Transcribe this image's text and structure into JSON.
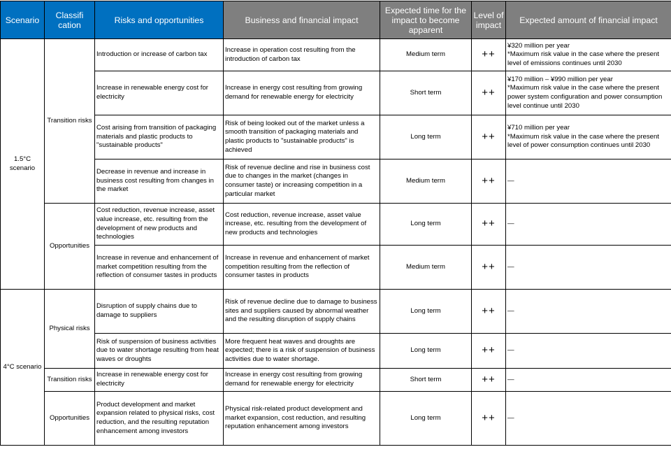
{
  "header": {
    "scenario": "Scenario",
    "classification": "Classifi cation",
    "risks": "Risks and opportunities",
    "business": "Business and financial impact",
    "time": "Expected time for the impact to become apparent",
    "level": "Level of impact",
    "amount": "Expected amount of financial impact"
  },
  "colors": {
    "header_blue": "#0070c0",
    "header_gray": "#7f7f7f"
  },
  "scenarios": [
    "1.5°C scenario",
    "4°C scenario"
  ],
  "classifications": [
    "Transition risks",
    "Opportunities",
    "Physical risks",
    "Transition risks",
    "Opportunities"
  ],
  "rows": [
    {
      "risk": "Introduction or increase of carbon tax",
      "impact": "Increase in operation cost resulting from the introduction of carbon tax",
      "time": "Medium term",
      "level": "++",
      "amount": "¥320 million per year",
      "note": "*Maximum risk value in the case where the present level of emissions continues until 2030"
    },
    {
      "risk": "Increase in renewable energy cost for electricity",
      "impact": "Increase in energy cost resulting from growing demand for renewable energy for electricity",
      "time": "Short term",
      "level": "++",
      "amount": "¥170 million – ¥990 million per year",
      "note": "*Maximum risk value in the case where the present power system configuration and power consumption level continue until 2030"
    },
    {
      "risk": "Cost arising from transition of packaging materials and plastic products to \"sustainable products\"",
      "impact": "Risk of being looked out of the market unless a smooth transition of packaging materials and plastic products to \"sustainable products\" is achieved",
      "time": "Long term",
      "level": "++",
      "amount": "¥710 million per year",
      "note": "*Maximum risk value in the case where the present level of power consumption continues until 2030"
    },
    {
      "risk": "Decrease in revenue and increase in business cost resulting from changes in the market",
      "impact": "Risk of revenue decline and rise in business cost due to changes in the market (changes in consumer taste) or increasing competition in a particular market",
      "time": "Medium term",
      "level": "++",
      "amount": "—",
      "note": ""
    },
    {
      "risk": "Cost reduction, revenue increase, asset value increase, etc. resulting from the development of new products and technologies",
      "impact": "Cost reduction, revenue increase, asset value increase, etc. resulting from the development of new products and technologies",
      "time": "Long term",
      "level": "++",
      "amount": "—",
      "note": ""
    },
    {
      "risk": "Increase in revenue and enhancement of market competition resulting from the reflection of consumer tastes in products",
      "impact": "Increase in revenue and enhancement of market competition resulting from the reflection of consumer tastes in products",
      "time": "Medium term",
      "level": "++",
      "amount": "—",
      "note": ""
    },
    {
      "risk": "Disruption of supply chains due to damage to suppliers",
      "impact": "Risk of revenue decline due to damage to business sites and suppliers caused by abnormal weather and the resulting disruption of supply chains",
      "time": "Long term",
      "level": "++",
      "amount": "—",
      "note": ""
    },
    {
      "risk": "Risk of suspension of business activities due to water shortage resulting from heat waves or droughts",
      "impact": "More frequent heat waves and droughts are expected; there is a risk of suspension of business activities due to water shortage.",
      "time": "Long term",
      "level": "++",
      "amount": "—",
      "note": ""
    },
    {
      "risk": "Increase in renewable energy cost for electricity",
      "impact": "Increase in energy cost resulting from growing demand for renewable energy for electricity",
      "time": "Short term",
      "level": "++",
      "amount": "—",
      "note": ""
    },
    {
      "risk": "Product development and market expansion related to physical risks, cost reduction, and the resulting reputation enhancement among investors",
      "impact": "Physical risk-related product development and market expansion, cost reduction, and resulting reputation enhancement among investors",
      "time": "Long term",
      "level": "++",
      "amount": "—",
      "note": ""
    }
  ]
}
